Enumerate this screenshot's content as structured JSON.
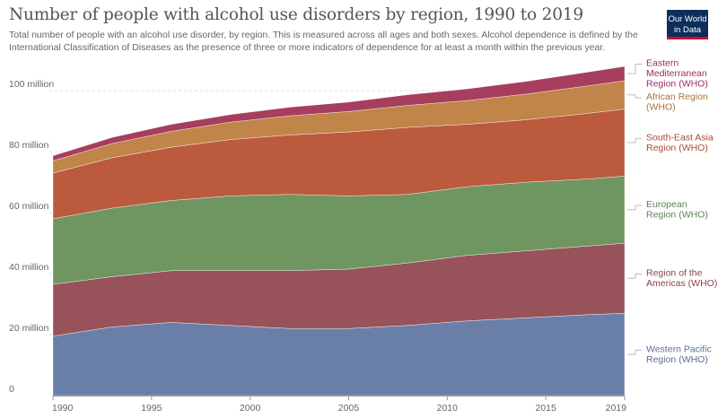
{
  "header": {
    "title": "Number of people with alcohol use disorders by region, 1990 to 2019",
    "subtitle": "Total number of people with an alcohol use disorder, by region. This is measured across all ages and both sexes. Alcohol dependence is defined by the International Classification of Diseases as the presence of three or more indicators of dependence for at least a month within the previous year."
  },
  "logo": {
    "line1": "Our World",
    "line2": "in Data"
  },
  "chart_data": {
    "type": "area",
    "stacked": true,
    "title": "Number of people with alcohol use disorders by region, 1990 to 2019",
    "xlabel": "",
    "ylabel": "",
    "x": [
      1990,
      1993,
      1996,
      1999,
      2002,
      2005,
      2008,
      2011,
      2014,
      2017,
      2019
    ],
    "x_ticks": [
      1990,
      1995,
      2000,
      2005,
      2010,
      2015,
      2019
    ],
    "y_ticks": [
      {
        "value": 0,
        "label": "0"
      },
      {
        "value": 20000000,
        "label": "20 million"
      },
      {
        "value": 40000000,
        "label": "40 million"
      },
      {
        "value": 60000000,
        "label": "60 million"
      },
      {
        "value": 80000000,
        "label": "80 million"
      },
      {
        "value": 100000000,
        "label": "100 million"
      }
    ],
    "ylim": [
      0,
      108000000
    ],
    "grid": true,
    "legend_position": "right",
    "series": [
      {
        "name": "Western Pacific Region (WHO)",
        "color": "#6a7fa8",
        "values": [
          19500000,
          22500000,
          24000000,
          23000000,
          22000000,
          22000000,
          23000000,
          24500000,
          25500000,
          26500000,
          27000000
        ]
      },
      {
        "name": "Region of the Americas (WHO)",
        "color": "#985259",
        "values": [
          17000000,
          16500000,
          17000000,
          18000000,
          19000000,
          19500000,
          20500000,
          21500000,
          22000000,
          22500000,
          23000000
        ]
      },
      {
        "name": "European Region (WHO)",
        "color": "#6f9560",
        "values": [
          21500000,
          22500000,
          23000000,
          24500000,
          25000000,
          24000000,
          22500000,
          22500000,
          22500000,
          22000000,
          22000000
        ]
      },
      {
        "name": "South-East Asia Region (WHO)",
        "color": "#bc5a3e",
        "values": [
          15000000,
          16500000,
          17500000,
          18500000,
          19500000,
          21000000,
          22000000,
          20500000,
          20500000,
          21500000,
          22000000
        ]
      },
      {
        "name": "African Region (WHO)",
        "color": "#c18449",
        "values": [
          4000000,
          4700000,
          5200000,
          5700000,
          6300000,
          6700000,
          7200000,
          7800000,
          8400000,
          9000000,
          9300000
        ]
      },
      {
        "name": "Eastern Mediterranean Region (WHO)",
        "color": "#a73e5e",
        "values": [
          1700000,
          2000000,
          2300000,
          2500000,
          2800000,
          3100000,
          3500000,
          3800000,
          4200000,
          4500000,
          4700000
        ]
      }
    ],
    "legend_colors": [
      "#5b6e97",
      "#8c4149",
      "#5c8352",
      "#a84a31",
      "#a87536",
      "#9b2c56"
    ],
    "legend_lines": [
      [
        "Western Pacific",
        "Region (WHO)"
      ],
      [
        "Region of the",
        "Americas (WHO)"
      ],
      [
        "European",
        "Region (WHO)"
      ],
      [
        "South-East Asia",
        "Region (WHO)"
      ],
      [
        "African Region",
        "(WHO)"
      ],
      [
        "Eastern",
        "Mediterranean",
        "Region (WHO)"
      ]
    ]
  }
}
